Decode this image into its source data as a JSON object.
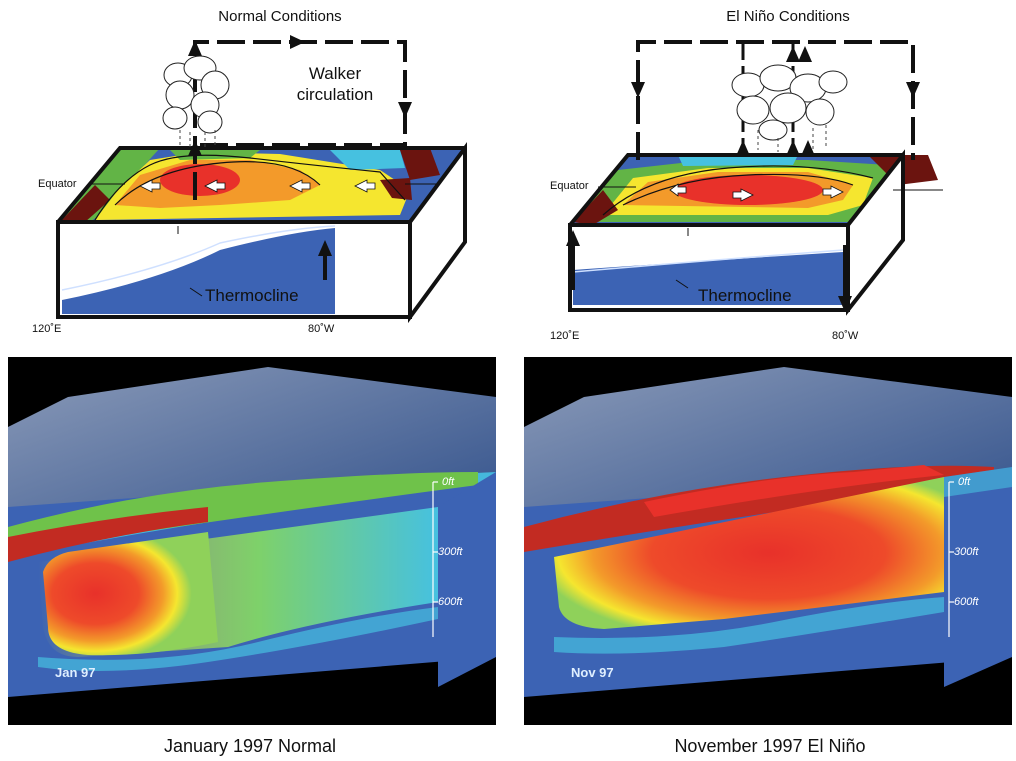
{
  "colors": {
    "warm_red": "#e8312a",
    "orange": "#f39a2a",
    "yellow": "#f5e62f",
    "green": "#62b446",
    "cyan": "#46c1e0",
    "ocean_blue": "#3c63b4",
    "land": "#6b140f"
  },
  "normal": {
    "title": "Normal Conditions",
    "walker_label_line1": "Walker",
    "walker_label_line2": "circulation",
    "equator_label": "Equator",
    "thermocline_label": "Thermocline",
    "west_longitude": "120˚E",
    "east_longitude": "80˚W"
  },
  "elnino": {
    "title": "El Niño Conditions",
    "equator_label": "Equator",
    "thermocline_label": "Thermocline",
    "west_longitude": "120˚E",
    "east_longitude": "80˚W"
  },
  "viz_left": {
    "date_tag": "Jan 97",
    "depth_labels": [
      "0ft",
      "300ft",
      "600ft"
    ],
    "caption": "January 1997 Normal"
  },
  "viz_right": {
    "date_tag": "Nov 97",
    "depth_labels": [
      "0ft",
      "300ft",
      "600ft"
    ],
    "caption": "November 1997 El Niño"
  },
  "icons": [
    "cloud-icon",
    "arrow-up-icon",
    "arrow-down-icon",
    "arrow-right-icon"
  ]
}
